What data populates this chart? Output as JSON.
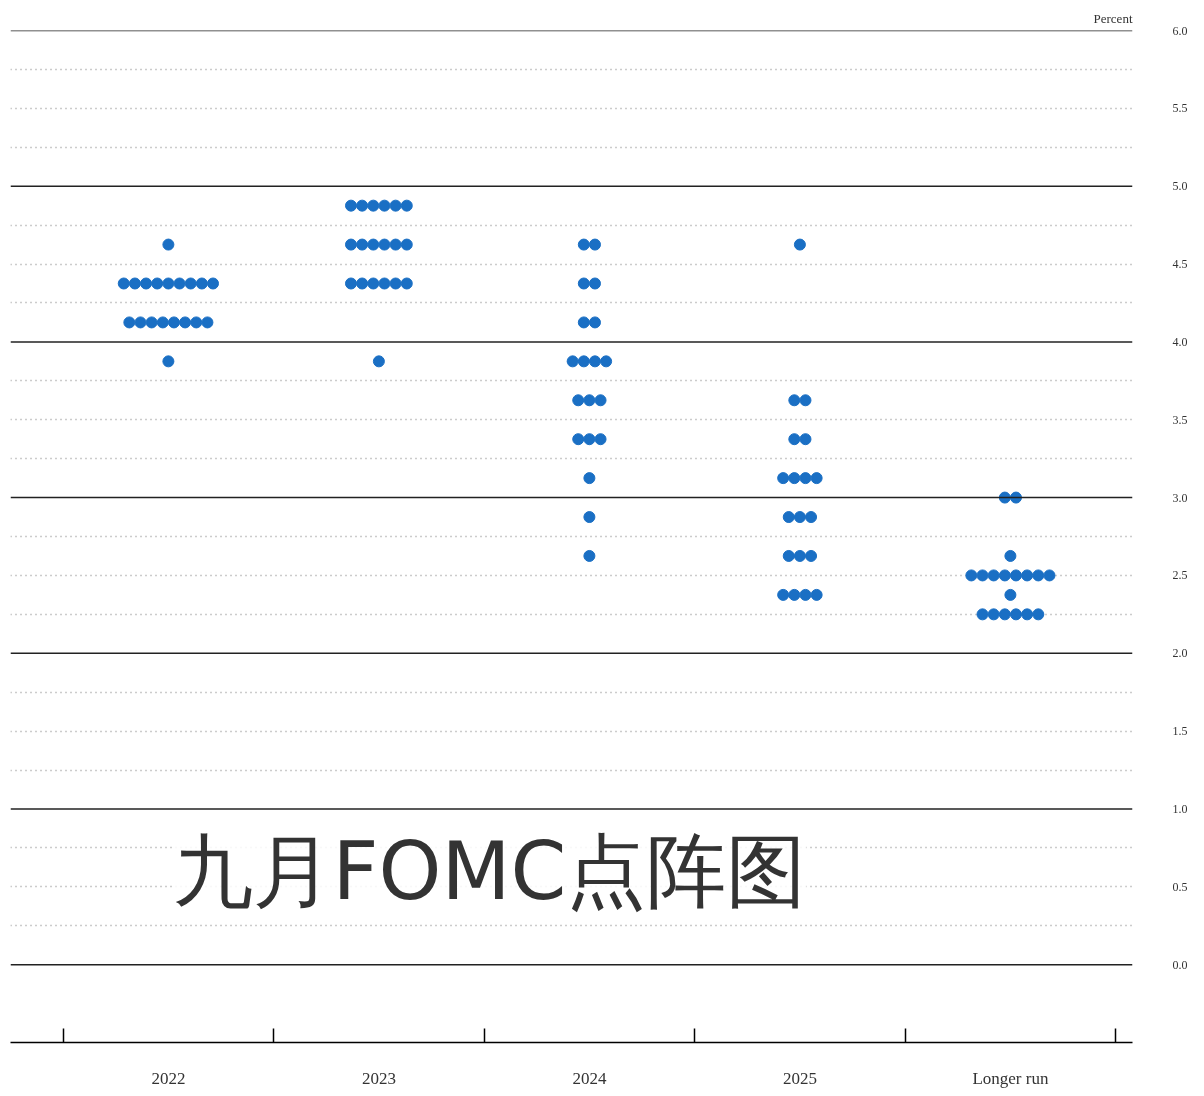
{
  "chart_data": {
    "type": "scatter",
    "ylabel": "Percent",
    "annotations": [
      "九月FOMC点阵图"
    ],
    "categories": [
      "2022",
      "2023",
      "2024",
      "2025",
      "Longer run"
    ],
    "series": [
      {
        "color": "#1a6fc4",
        "values": [
          4.625,
          4.875,
          4.625,
          4.625,
          3.0
        ]
      },
      {
        "color": "#1a6fc4",
        "values": [
          4.375,
          4.875,
          4.625,
          3.625,
          3.0
        ]
      },
      {
        "color": "#1a6fc4",
        "values": [
          4.375,
          4.875,
          4.375,
          3.625,
          2.625
        ]
      },
      {
        "color": "#1a6fc4",
        "values": [
          4.375,
          4.875,
          4.375,
          3.375,
          2.5
        ]
      },
      {
        "color": "#1a6fc4",
        "values": [
          4.375,
          4.875,
          4.125,
          3.375,
          2.5
        ]
      },
      {
        "color": "#1a6fc4",
        "values": [
          4.375,
          4.875,
          4.125,
          3.125,
          2.5
        ]
      },
      {
        "color": "#1a6fc4",
        "values": [
          4.375,
          4.625,
          3.875,
          3.125,
          2.5
        ]
      },
      {
        "color": "#1a6fc4",
        "values": [
          4.375,
          4.625,
          3.875,
          3.125,
          2.5
        ]
      },
      {
        "color": "#1a6fc4",
        "values": [
          4.375,
          4.625,
          3.875,
          3.125,
          2.5
        ]
      },
      {
        "color": "#1a6fc4",
        "values": [
          4.375,
          4.625,
          3.875,
          2.875,
          2.5
        ]
      },
      {
        "color": "#1a6fc4",
        "values": [
          4.125,
          4.625,
          3.625,
          2.875,
          2.5
        ]
      },
      {
        "color": "#1a6fc4",
        "values": [
          4.125,
          4.625,
          3.625,
          2.875,
          2.375
        ]
      },
      {
        "color": "#1a6fc4",
        "values": [
          4.125,
          4.375,
          3.625,
          2.625,
          2.25
        ]
      },
      {
        "color": "#1a6fc4",
        "values": [
          4.125,
          4.375,
          3.375,
          2.625,
          2.25
        ]
      },
      {
        "color": "#1a6fc4",
        "values": [
          4.125,
          4.375,
          3.375,
          2.625,
          2.25
        ]
      },
      {
        "color": "#1a6fc4",
        "values": [
          4.125,
          4.375,
          3.375,
          2.375,
          2.25
        ]
      },
      {
        "color": "#1a6fc4",
        "values": [
          4.125,
          4.375,
          3.125,
          2.375,
          2.25
        ]
      },
      {
        "color": "#1a6fc4",
        "values": [
          4.125,
          4.375,
          2.875,
          2.375,
          2.25
        ]
      },
      {
        "color": "#1a6fc4",
        "values": [
          3.875,
          3.875,
          2.625,
          2.375,
          null
        ]
      }
    ],
    "ylim": [
      -0.5,
      6
    ],
    "yticks": [
      {
        "value": 0,
        "label": "0.0"
      },
      {
        "value": 0.25,
        "label": null
      },
      {
        "value": 0.5,
        "label": "0.5"
      },
      {
        "value": 0.75,
        "label": null
      },
      {
        "value": 1,
        "label": "1.0"
      },
      {
        "value": 1.25,
        "label": null
      },
      {
        "value": 1.5,
        "label": "1.5"
      },
      {
        "value": 1.75,
        "label": null
      },
      {
        "value": 2,
        "label": "2.0"
      },
      {
        "value": 2.25,
        "label": null
      },
      {
        "value": 2.5,
        "label": "2.5"
      },
      {
        "value": 2.75,
        "label": null
      },
      {
        "value": 3,
        "label": "3.0"
      },
      {
        "value": 3.25,
        "label": null
      },
      {
        "value": 3.5,
        "label": "3.5"
      },
      {
        "value": 3.75,
        "label": null
      },
      {
        "value": 4,
        "label": "4.0"
      },
      {
        "value": 4.25,
        "label": null
      },
      {
        "value": 4.5,
        "label": "4.5"
      },
      {
        "value": 4.75,
        "label": null
      },
      {
        "value": 5,
        "label": "5.0"
      },
      {
        "value": 5.25,
        "label": null
      },
      {
        "value": 5.5,
        "label": "5.5"
      },
      {
        "value": 5.75,
        "label": null
      },
      {
        "value": 6,
        "label": "6.0"
      }
    ],
    "grid": "y",
    "marker": "circle"
  }
}
